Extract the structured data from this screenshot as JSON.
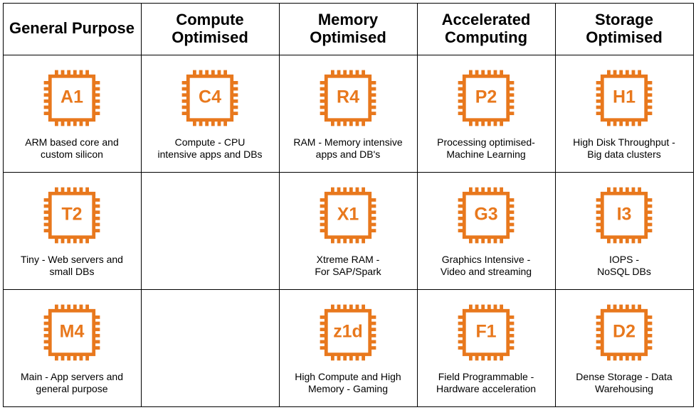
{
  "chip_color": "#e8781d",
  "chip_fill": "#ffffff",
  "text_color": "#000000",
  "border_color": "#000000",
  "background_color": "#ffffff",
  "header_fontsize": 22,
  "caption_fontsize": 14,
  "grid": {
    "cols": 5,
    "rows": 4
  },
  "columns": [
    {
      "title": "General\nPurpose"
    },
    {
      "title": "Compute\nOptimised"
    },
    {
      "title": "Memory\nOptimised"
    },
    {
      "title": "Accelerated\nComputing"
    },
    {
      "title": "Storage\nOptimised"
    }
  ],
  "cells": [
    [
      {
        "code": "A1",
        "caption": "ARM based core and\ncustom silicon"
      },
      {
        "code": "C4",
        "caption": "Compute - CPU\nintensive apps and DBs"
      },
      {
        "code": "R4",
        "caption": "RAM - Memory intensive\napps and DB's"
      },
      {
        "code": "P2",
        "caption": "Processing optimised-\nMachine Learning"
      },
      {
        "code": "H1",
        "caption": "High Disk Throughput -\nBig data clusters"
      }
    ],
    [
      {
        "code": "T2",
        "caption": "Tiny - Web servers and\nsmall DBs"
      },
      null,
      {
        "code": "X1",
        "caption": "Xtreme RAM -\nFor SAP/Spark"
      },
      {
        "code": "G3",
        "caption": "Graphics Intensive -\nVideo and streaming"
      },
      {
        "code": "I3",
        "caption": "IOPS -\nNoSQL DBs"
      }
    ],
    [
      {
        "code": "M4",
        "caption": "Main - App servers and\ngeneral purpose"
      },
      null,
      {
        "code": "z1d",
        "caption": "High Compute and High\nMemory - Gaming"
      },
      {
        "code": "F1",
        "caption": "Field Programmable -\nHardware acceleration"
      },
      {
        "code": "D2",
        "caption": "Dense Storage - Data\nWarehousing"
      }
    ]
  ]
}
